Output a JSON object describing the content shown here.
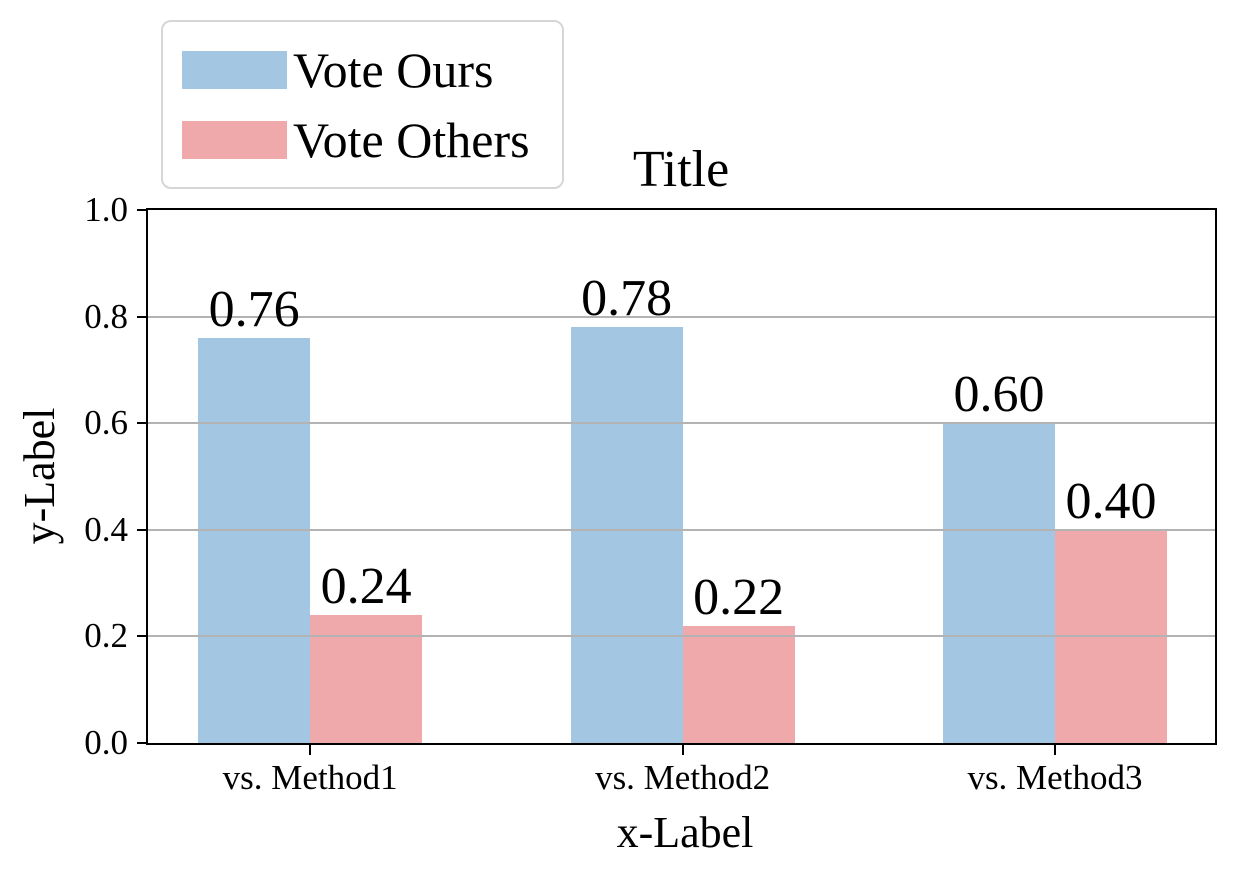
{
  "window": {
    "background": "#ffffff"
  },
  "chart_data": {
    "type": "bar",
    "title": "Title",
    "xlabel": "x-Label",
    "ylabel": "y-Label",
    "categories": [
      "vs. Method1",
      "vs. Method2",
      "vs. Method3"
    ],
    "series": [
      {
        "name": "Vote Ours",
        "color": "#a3c6e2",
        "values": [
          0.76,
          0.78,
          0.6
        ],
        "value_labels": [
          "0.76",
          "0.78",
          "0.60"
        ]
      },
      {
        "name": "Vote Others",
        "color": "#f0a9ab",
        "values": [
          0.24,
          0.22,
          0.4
        ],
        "value_labels": [
          "0.24",
          "0.22",
          "0.40"
        ]
      }
    ],
    "ylim": [
      0.0,
      1.0
    ],
    "yticks": [
      {
        "value": 0.0,
        "label": "0.0"
      },
      {
        "value": 0.2,
        "label": "0.2"
      },
      {
        "value": 0.4,
        "label": "0.4"
      },
      {
        "value": 0.6,
        "label": "0.6"
      },
      {
        "value": 0.8,
        "label": "0.8"
      },
      {
        "value": 1.0,
        "label": "1.0"
      }
    ],
    "grid": true,
    "grid_color": "#b3b3b3",
    "axis_color": "#000000",
    "legend": {
      "position": "upper-left above axes",
      "items": [
        {
          "label": "Vote Ours",
          "color": "#a3c6e2"
        },
        {
          "label": "Vote Others",
          "color": "#f0a9ab"
        }
      ]
    }
  }
}
